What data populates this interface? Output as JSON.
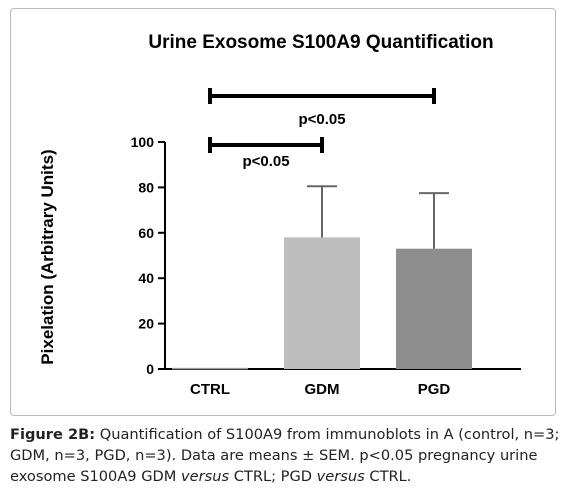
{
  "colors": {
    "ctrl": "#9f9f9f",
    "gdm": "#bdbdbd",
    "pgd": "#8d8d8d",
    "axis": "#000000",
    "error_bar": "#666666"
  },
  "chart_data": {
    "type": "bar",
    "title": "Urine Exosome S100A9 Quantification",
    "xlabel": "",
    "ylabel": "Pixelation (Arbitrary Units)",
    "categories": [
      "CTRL",
      "GDM",
      "PGD"
    ],
    "values": [
      0.5,
      58,
      53
    ],
    "errors": [
      0.3,
      22.5,
      24.5
    ],
    "ylim": [
      0,
      100
    ],
    "yticks": [
      0,
      20,
      40,
      60,
      80,
      100
    ],
    "grid": false,
    "annotations": [
      {
        "from": "CTRL",
        "to": "GDM",
        "text": "p<0.05",
        "level": "lower"
      },
      {
        "from": "CTRL",
        "to": "PGD",
        "text": "p<0.05",
        "level": "upper"
      }
    ]
  },
  "caption": {
    "label": "Figure 2B:",
    "text_1": " Quantification of S100A9 from immunoblots in A (control, n=3; GDM, n=3, PGD, n=3). Data are means ± SEM. p<0.05 pregnancy urine exosome S100A9 GDM ",
    "italic_1": "versus",
    "text_2": " CTRL; PGD ",
    "italic_2": "versus",
    "text_3": " CTRL."
  }
}
